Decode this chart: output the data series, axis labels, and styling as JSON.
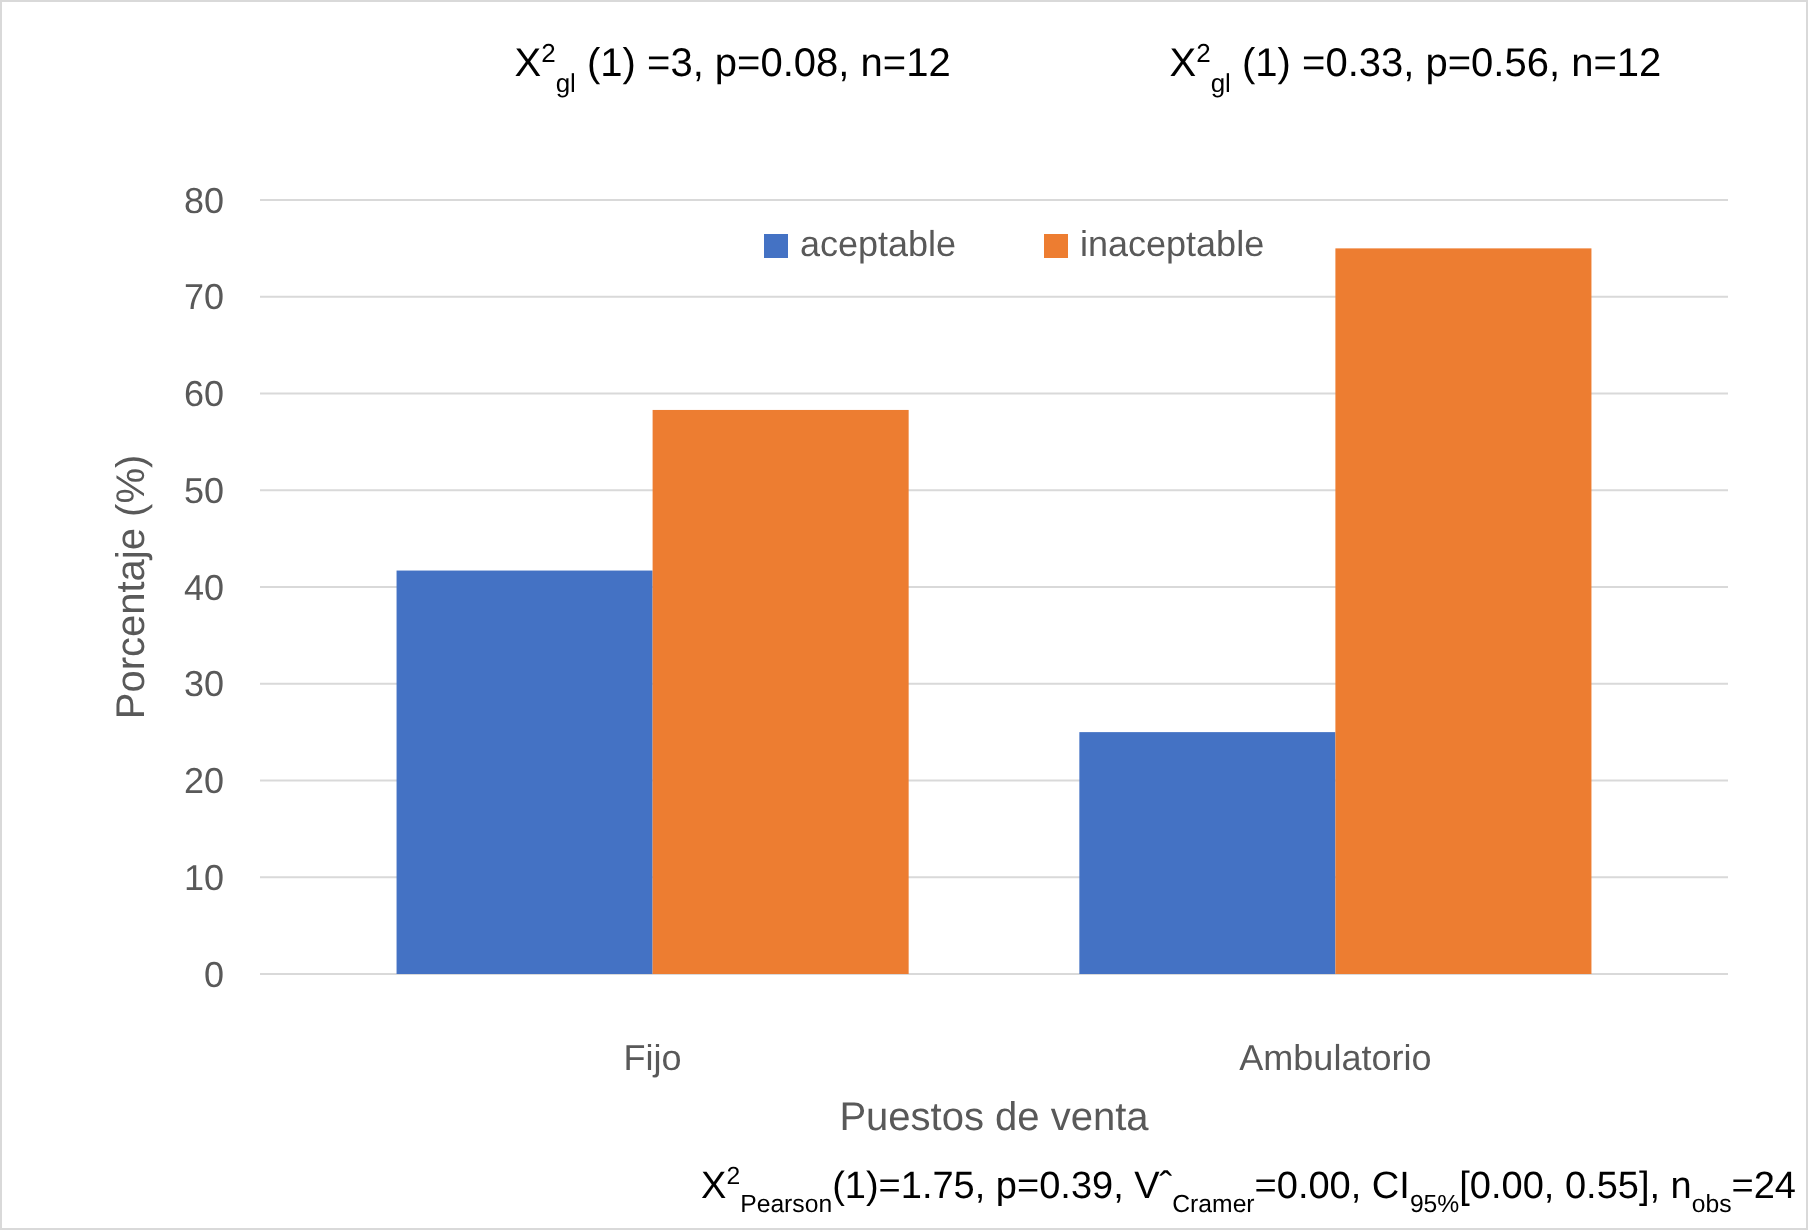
{
  "chart_data": {
    "type": "bar",
    "xlabel": "Puestos de venta",
    "ylabel": "Porcentaje (%)",
    "categories": [
      "Fijo",
      "Ambulatorio"
    ],
    "series": [
      {
        "name": "aceptable",
        "color": "#4472c4",
        "values": [
          41.7,
          25
        ]
      },
      {
        "name": "inaceptable",
        "color": "#ed7d31",
        "values": [
          58.3,
          75
        ]
      }
    ],
    "ylim": [
      0,
      80
    ],
    "yticks": [
      0,
      10,
      20,
      30,
      40,
      50,
      60,
      70,
      80
    ],
    "grid": "y",
    "legend": "top",
    "annotations": [
      "X$^{2}$$_{gl}$ (1) =3, p=0.08, n=12",
      "X$^{2}$$_{gl}$ (1) =0.33, p=0.56, n=12",
      "X$^{2}$$_{Pearson}$(1)=1.75, p=0.39, Vˆ$_{Cramer}$=0.00, CI$_{95%}$[0.00, 0.55], n$_{obs}$=24"
    ]
  }
}
